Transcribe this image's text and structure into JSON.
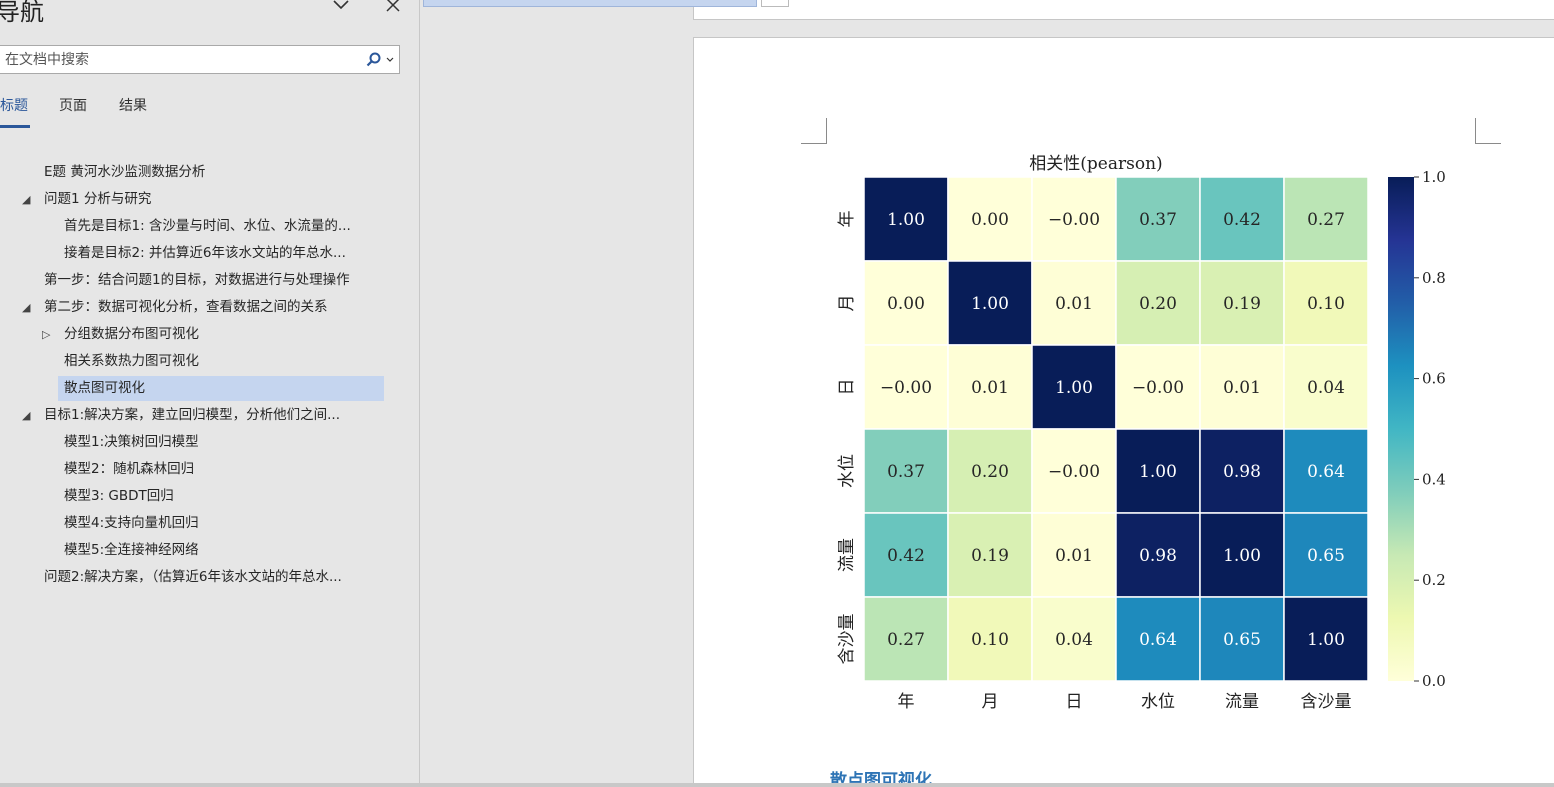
{
  "nav": {
    "title": "导航",
    "search_placeholder": "在文档中搜索",
    "tabs": [
      "标题",
      "页面",
      "结果"
    ],
    "items": [
      {
        "label": "E题 黄河水沙监测数据分析",
        "level": 1
      },
      {
        "label": "问题1 分析与研究",
        "level": 1,
        "toggle": "expanded"
      },
      {
        "label": "首先是目标1: 含沙量与时间、水位、水流量的...",
        "level": 2
      },
      {
        "label": "接着是目标2: 并估算近6年该水文站的年总水...",
        "level": 2
      },
      {
        "label": "第一步：结合问题1的目标，对数据进行与处理操作",
        "level": 1
      },
      {
        "label": "第二步：数据可视化分析，查看数据之间的关系",
        "level": 1,
        "toggle": "expanded"
      },
      {
        "label": "分组数据分布图可视化",
        "level": 2,
        "toggle": "collapsed"
      },
      {
        "label": "相关系数热力图可视化",
        "level": 2
      },
      {
        "label": "散点图可视化",
        "level": 2,
        "selected": true
      },
      {
        "label": "目标1:解决方案，建立回归模型，分析他们之间...",
        "level": 1,
        "toggle": "expanded"
      },
      {
        "label": "模型1:决策树回归模型",
        "level": 2
      },
      {
        "label": "模型2：随机森林回归",
        "level": 2
      },
      {
        "label": "模型3: GBDT回归",
        "level": 2
      },
      {
        "label": "模型4:支持向量机回归",
        "level": 2
      },
      {
        "label": "模型5:全连接神经网络",
        "level": 2
      },
      {
        "label": "问题2:解决方案，（估算近6年该水文站的年总水...",
        "level": 1
      }
    ]
  },
  "document": {
    "next_heading": "散点图可视化"
  },
  "chart_data": {
    "type": "heatmap",
    "title": "相关性(pearson)",
    "x_labels": [
      "年",
      "月",
      "日",
      "水位",
      "流量",
      "含沙量"
    ],
    "y_labels": [
      "年",
      "月",
      "日",
      "水位",
      "流量",
      "含沙量"
    ],
    "values": [
      [
        1.0,
        0.0,
        -0.0,
        0.37,
        0.42,
        0.27
      ],
      [
        0.0,
        1.0,
        0.01,
        0.2,
        0.19,
        0.1
      ],
      [
        -0.0,
        0.01,
        1.0,
        -0.0,
        0.01,
        0.04
      ],
      [
        0.37,
        0.2,
        -0.0,
        1.0,
        0.98,
        0.64
      ],
      [
        0.42,
        0.19,
        0.01,
        0.98,
        1.0,
        0.65
      ],
      [
        0.27,
        0.1,
        0.04,
        0.64,
        0.65,
        1.0
      ]
    ],
    "cell_labels": [
      [
        "1.00",
        "0.00",
        "−0.00",
        "0.37",
        "0.42",
        "0.27"
      ],
      [
        "0.00",
        "1.00",
        "0.01",
        "0.20",
        "0.19",
        "0.10"
      ],
      [
        "−0.00",
        "0.01",
        "1.00",
        "−0.00",
        "0.01",
        "0.04"
      ],
      [
        "0.37",
        "0.20",
        "−0.00",
        "1.00",
        "0.98",
        "0.64"
      ],
      [
        "0.42",
        "0.19",
        "0.01",
        "0.98",
        "1.00",
        "0.65"
      ],
      [
        "0.27",
        "0.10",
        "0.04",
        "0.64",
        "0.65",
        "1.00"
      ]
    ],
    "colormap": "YlGnBu",
    "colorbar_ticks": [
      "0.0",
      "0.2",
      "0.4",
      "0.6",
      "0.8",
      "1.0"
    ],
    "vmin": 0.0,
    "vmax": 1.0
  },
  "colors": {
    "accent": "#2b579a",
    "selected": "#c5d5ef",
    "heading": "#2e74b5"
  }
}
